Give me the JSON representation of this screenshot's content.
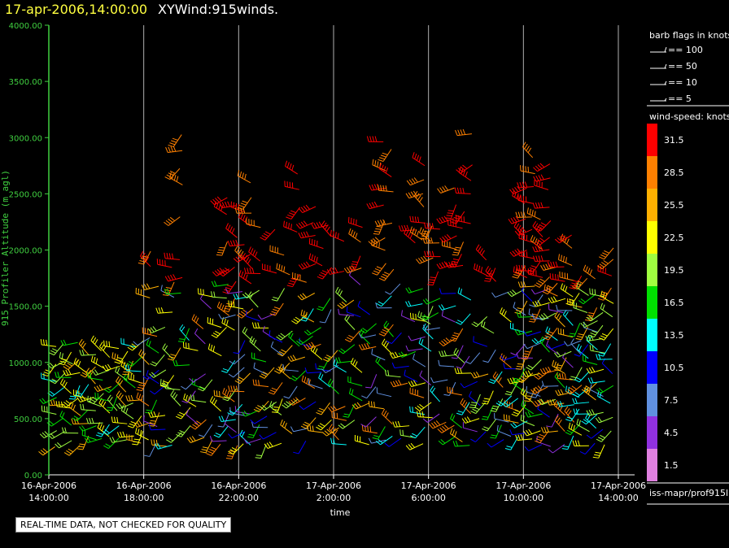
{
  "header": {
    "date_title": "17-apr-2006,14:00:00",
    "main_title": "XYWind:915winds."
  },
  "chart_data": {
    "type": "wind-barb time-height",
    "ylabel": "915 Profiler Altitude (m agl)",
    "xlabel": "time",
    "ylim": [
      0,
      4000
    ],
    "yticks": [
      "0.00",
      "500.00",
      "1000.00",
      "1500.00",
      "2000.00",
      "2500.00",
      "3000.00",
      "3500.00",
      "4000.00"
    ],
    "xticks": [
      {
        "date": "16-Apr-2006",
        "time": "14:00:00",
        "hour": 0
      },
      {
        "date": "16-Apr-2006",
        "time": "18:00:00",
        "hour": 4
      },
      {
        "date": "16-Apr-2006",
        "time": "22:00:00",
        "hour": 8
      },
      {
        "date": "17-Apr-2006",
        "time": "2:00:00",
        "hour": 12
      },
      {
        "date": "17-Apr-2006",
        "time": "6:00:00",
        "hour": 16
      },
      {
        "date": "17-Apr-2006",
        "time": "10:00:00",
        "hour": 20
      },
      {
        "date": "17-Apr-2006",
        "time": "14:00:00",
        "hour": 24
      }
    ],
    "xlim_hours": [
      0,
      24
    ],
    "grid": "vertical lines at each x tick",
    "barb_legend": {
      "title": "barb flags in knots",
      "entries": [
        "== 100",
        "== 50",
        "== 10",
        "== 5"
      ]
    },
    "colorbar": {
      "title": "wind-speed: knots",
      "levels": [
        {
          "label": "31.5",
          "color": "#ff0000"
        },
        {
          "label": "28.5",
          "color": "#ff8000"
        },
        {
          "label": "25.5",
          "color": "#ffb000"
        },
        {
          "label": "22.5",
          "color": "#ffff00"
        },
        {
          "label": "19.5",
          "color": "#a0ff40"
        },
        {
          "label": "16.5",
          "color": "#00e000"
        },
        {
          "label": "13.5",
          "color": "#00ffff"
        },
        {
          "label": "10.5",
          "color": "#0000ff"
        },
        {
          "label": "7.5",
          "color": "#6090e0"
        },
        {
          "label": "4.5",
          "color": "#9030e0"
        },
        {
          "label": "1.5",
          "color": "#e080e0"
        }
      ]
    }
  },
  "footer": {
    "quality_note": "REAL-TIME DATA, NOT CHECKED FOR QUALITY",
    "source_path": "iss-mapr/prof915l"
  }
}
